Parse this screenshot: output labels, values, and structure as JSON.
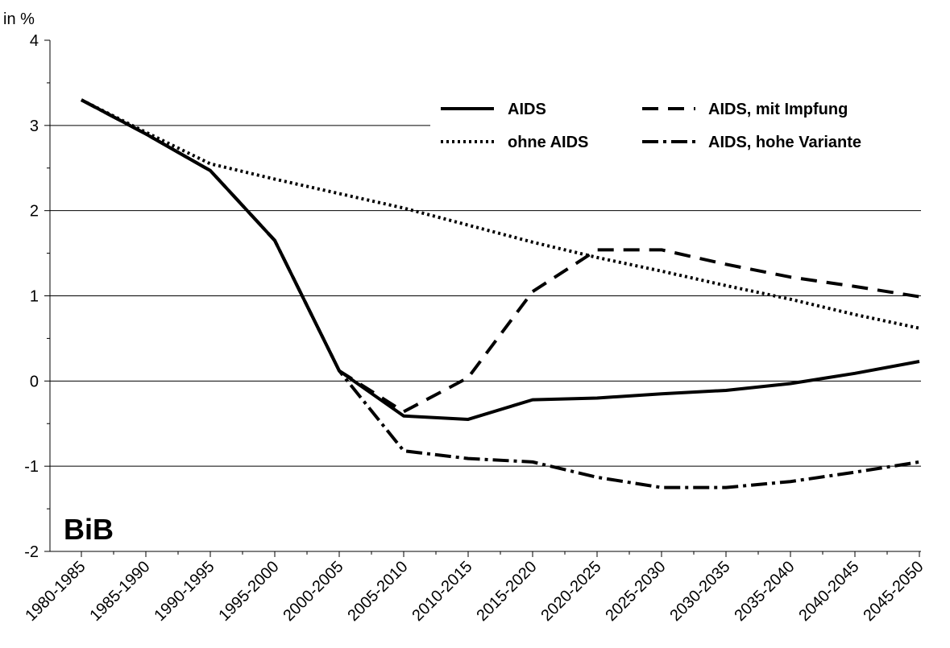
{
  "chart_data": {
    "type": "line",
    "ylabel": "in %",
    "ylim": [
      -2,
      4
    ],
    "yticks": [
      -2,
      -1,
      0,
      1,
      2,
      3,
      4
    ],
    "grid": true,
    "legend_position": "top-right",
    "categories": [
      "1980-1985",
      "1985-1990",
      "1990-1995",
      "1995-2000",
      "2000-2005",
      "2005-2010",
      "2010-2015",
      "2015-2020",
      "2020-2025",
      "2025-2030",
      "2030-2035",
      "2035-2040",
      "2040-2045",
      "2045-2050"
    ],
    "series": [
      {
        "name": "AIDS",
        "style": "solid",
        "values": [
          3.3,
          2.9,
          2.47,
          1.65,
          0.12,
          -0.41,
          -0.45,
          -0.22,
          -0.2,
          -0.15,
          -0.11,
          -0.03,
          0.09,
          0.23
        ]
      },
      {
        "name": "AIDS, mit Impfung",
        "style": "dashed",
        "values": [
          3.3,
          2.9,
          2.47,
          1.65,
          0.12,
          -0.36,
          0.04,
          1.05,
          1.54,
          1.54,
          1.37,
          1.22,
          1.11,
          0.99
        ]
      },
      {
        "name": "ohne AIDS",
        "style": "dotted",
        "values": [
          3.3,
          2.92,
          2.55,
          2.37,
          2.2,
          2.03,
          1.83,
          1.63,
          1.45,
          1.29,
          1.12,
          0.96,
          0.78,
          0.62
        ]
      },
      {
        "name": "AIDS, hohe Variante",
        "style": "dashdot",
        "values": [
          3.3,
          2.9,
          2.47,
          1.65,
          0.12,
          -0.82,
          -0.91,
          -0.95,
          -1.13,
          -1.25,
          -1.25,
          -1.18,
          -1.07,
          -0.95
        ]
      }
    ],
    "watermark": "BiB"
  }
}
